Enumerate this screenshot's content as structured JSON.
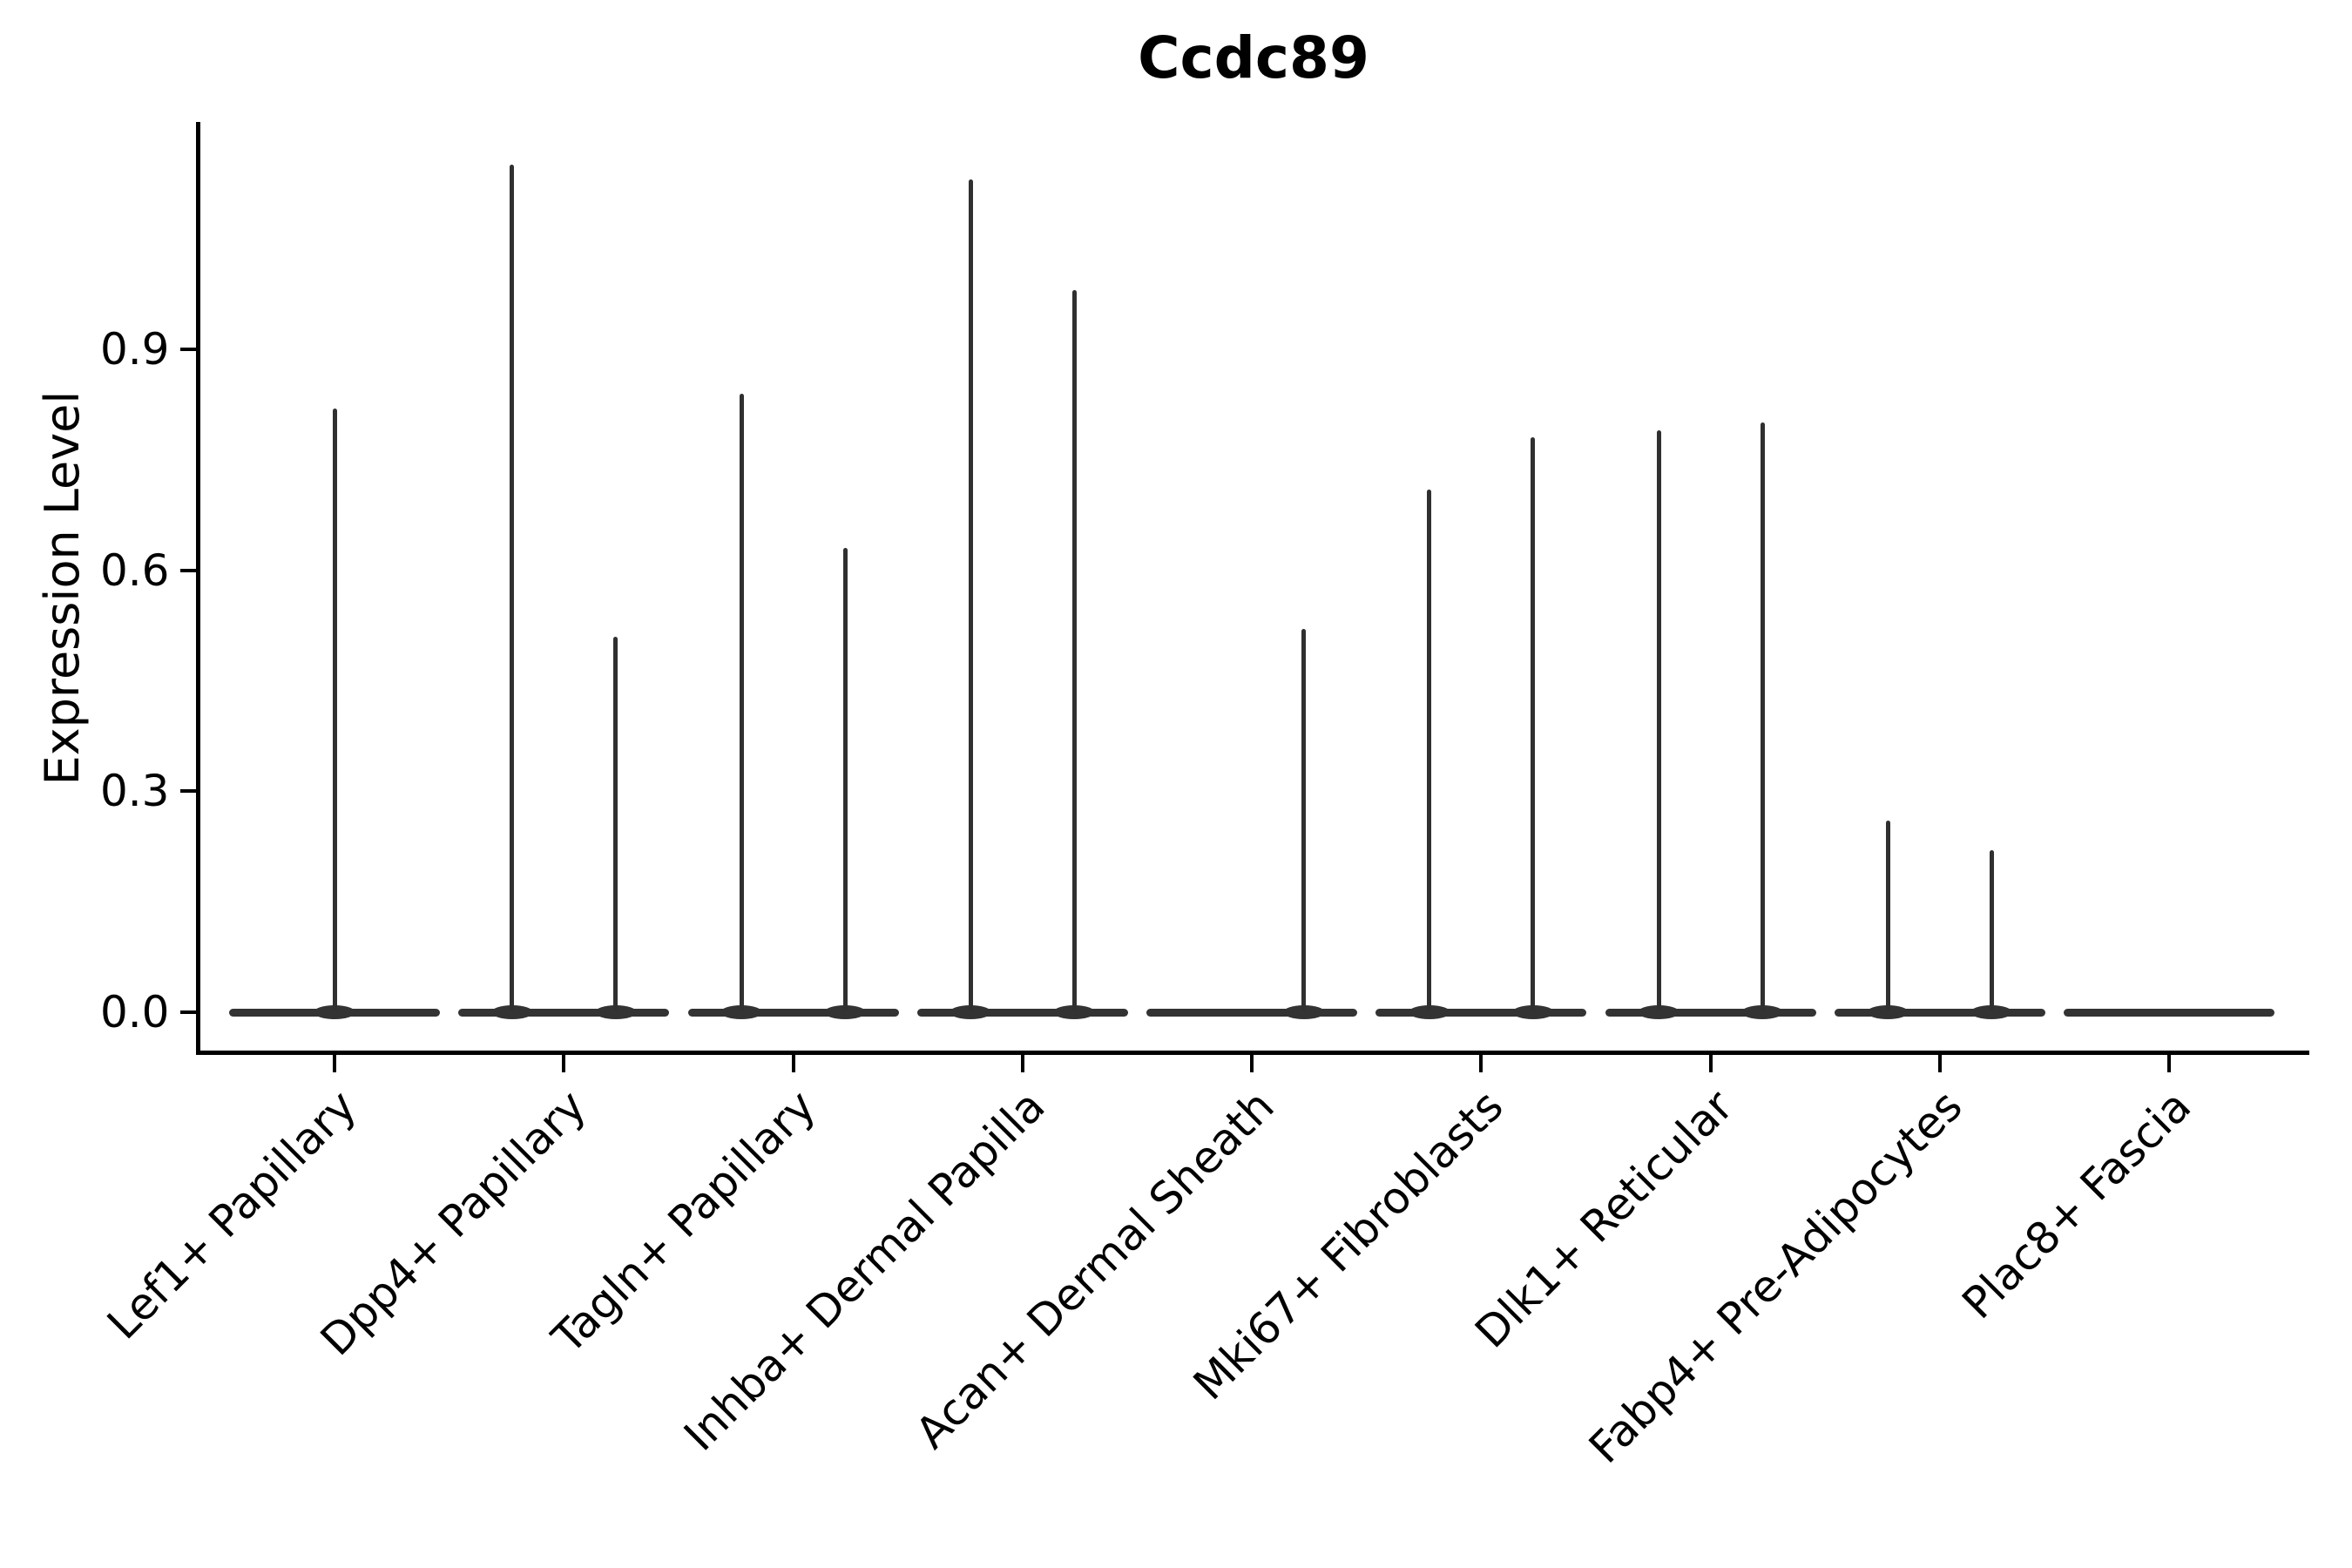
{
  "title": "Ccdc89",
  "chart_data": {
    "type": "violin",
    "title": "Ccdc89",
    "xlabel": "",
    "ylabel": "Expression Level",
    "ylim": [
      0,
      1.21
    ],
    "ytick_labels": [
      "0.0",
      "0.3",
      "0.6",
      "0.9"
    ],
    "ytick_values": [
      0.0,
      0.3,
      0.6,
      0.9
    ],
    "grid": false,
    "legend": false,
    "x_tick_label_rotation_deg": 45,
    "categories": [
      "Lef1+ Papillary",
      "Dpp4+ Papillary",
      "Tagln+ Papillary",
      "Inhba+ Dermal Papilla",
      "Acan+ Dermal Sheath",
      "Mki67+ Fibroblasts",
      "Dlk1+ Reticular",
      "Fabp4+ Pre-Adipocytes",
      "Plac8+ Fascia"
    ],
    "violins": [
      {
        "category": "Lef1+ Papillary",
        "spikes": [
          {
            "pos": "center",
            "max": 0.82
          }
        ]
      },
      {
        "category": "Dpp4+ Papillary",
        "spikes": [
          {
            "pos": "left",
            "max": 1.15
          },
          {
            "pos": "right",
            "max": 0.51
          }
        ]
      },
      {
        "category": "Tagln+ Papillary",
        "spikes": [
          {
            "pos": "left",
            "max": 0.84
          },
          {
            "pos": "right",
            "max": 0.63
          }
        ]
      },
      {
        "category": "Inhba+ Dermal Papilla",
        "spikes": [
          {
            "pos": "left",
            "max": 1.13
          },
          {
            "pos": "right",
            "max": 0.98
          }
        ]
      },
      {
        "category": "Acan+ Dermal Sheath",
        "spikes": [
          {
            "pos": "right",
            "max": 0.52
          }
        ]
      },
      {
        "category": "Mki67+ Fibroblasts",
        "spikes": [
          {
            "pos": "left",
            "max": 0.71
          },
          {
            "pos": "right",
            "max": 0.78
          }
        ]
      },
      {
        "category": "Dlk1+ Reticular",
        "spikes": [
          {
            "pos": "left",
            "max": 0.79
          },
          {
            "pos": "right",
            "max": 0.8
          }
        ]
      },
      {
        "category": "Fabp4+ Pre-Adipocytes",
        "spikes": [
          {
            "pos": "left",
            "max": 0.26
          },
          {
            "pos": "right",
            "max": 0.22
          }
        ]
      },
      {
        "category": "Plac8+ Fascia",
        "spikes": []
      }
    ],
    "baseline_value": 0.0,
    "colors": {
      "violin": "#333333",
      "axis": "#000000",
      "text": "#000000",
      "background": "#ffffff"
    }
  }
}
